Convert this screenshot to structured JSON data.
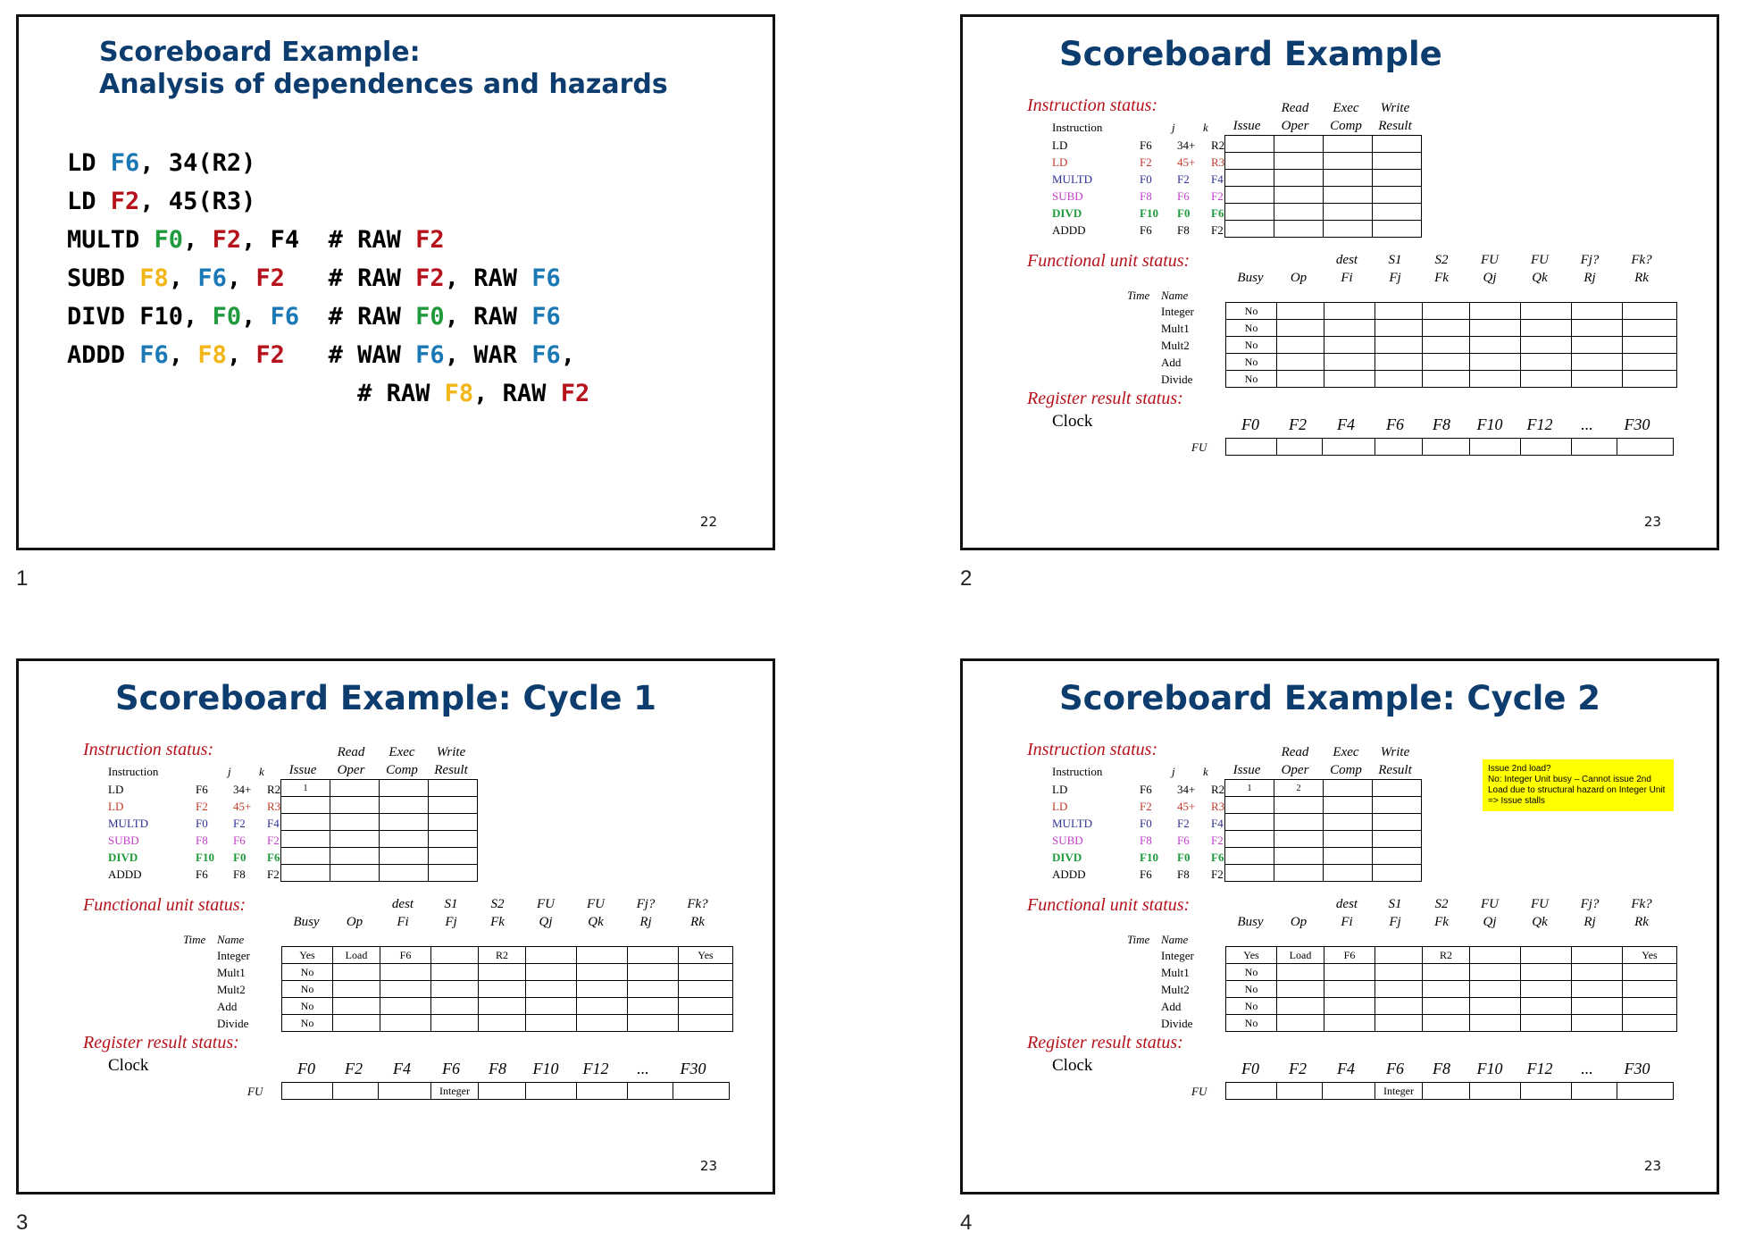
{
  "slides": [
    {
      "label": "1",
      "page_number": "22",
      "title_line1": "Scoreboard Example:",
      "title_line2": "Analysis of  dependences and hazards",
      "code_lines": [
        [
          {
            "t": "LD ",
            "c": "k"
          },
          {
            "t": "F6",
            "c": "blue"
          },
          {
            "t": ", 34(R2)",
            "c": "k"
          }
        ],
        [
          {
            "t": "LD ",
            "c": "k"
          },
          {
            "t": "F2",
            "c": "red"
          },
          {
            "t": ", 45(R3)",
            "c": "k"
          }
        ],
        [
          {
            "t": "MULTD ",
            "c": "k"
          },
          {
            "t": "F0",
            "c": "green"
          },
          {
            "t": ", ",
            "c": "k"
          },
          {
            "t": "F2",
            "c": "red"
          },
          {
            "t": ", F4  # RAW ",
            "c": "k"
          },
          {
            "t": "F2",
            "c": "red"
          }
        ],
        [
          {
            "t": "SUBD ",
            "c": "k"
          },
          {
            "t": "F8",
            "c": "yellow"
          },
          {
            "t": ", ",
            "c": "k"
          },
          {
            "t": "F6",
            "c": "blue"
          },
          {
            "t": ", ",
            "c": "k"
          },
          {
            "t": "F2",
            "c": "red"
          },
          {
            "t": "   # RAW ",
            "c": "k"
          },
          {
            "t": "F2",
            "c": "red"
          },
          {
            "t": ", RAW ",
            "c": "k"
          },
          {
            "t": "F6",
            "c": "blue"
          }
        ],
        [
          {
            "t": "DIVD F10, ",
            "c": "k"
          },
          {
            "t": "F0",
            "c": "green"
          },
          {
            "t": ", ",
            "c": "k"
          },
          {
            "t": "F6",
            "c": "blue"
          },
          {
            "t": "  # RAW ",
            "c": "k"
          },
          {
            "t": "F0",
            "c": "green"
          },
          {
            "t": ", RAW ",
            "c": "k"
          },
          {
            "t": "F6",
            "c": "blue"
          }
        ],
        [
          {
            "t": "ADDD ",
            "c": "k"
          },
          {
            "t": "F6",
            "c": "blue"
          },
          {
            "t": ", ",
            "c": "k"
          },
          {
            "t": "F8",
            "c": "yellow"
          },
          {
            "t": ", ",
            "c": "k"
          },
          {
            "t": "F2",
            "c": "red"
          },
          {
            "t": "   # WAW ",
            "c": "k"
          },
          {
            "t": "F6",
            "c": "blue"
          },
          {
            "t": ", WAR ",
            "c": "k"
          },
          {
            "t": "F6",
            "c": "blue"
          },
          {
            "t": ",",
            "c": "k"
          }
        ],
        [
          {
            "t": "                    # RAW ",
            "c": "k"
          },
          {
            "t": "F8",
            "c": "yellow"
          },
          {
            "t": ", RAW ",
            "c": "k"
          },
          {
            "t": "F2",
            "c": "red"
          }
        ]
      ]
    },
    {
      "label": "2",
      "page_number": "23",
      "title": "Scoreboard Example"
    },
    {
      "label": "3",
      "page_number": "23",
      "title": "Scoreboard Example: Cycle 1"
    },
    {
      "label": "4",
      "page_number": "23",
      "title": "Scoreboard Example: Cycle 2",
      "note": "Issue 2nd load?\nNo: Integer Unit busy – Cannot issue 2nd Load due to structural hazard on Integer Unit => Issue stalls"
    }
  ],
  "common": {
    "instruction_status": "Instruction status:",
    "functional_unit_status": "Functional unit status:",
    "register_result_status": "Register result status:",
    "clock": "Clock",
    "instr_header": {
      "instruction": "Instruction",
      "j": "j",
      "k": "k",
      "issue": "Issue",
      "read1": "Read",
      "read2": "Oper",
      "exec1": "Exec",
      "exec2": "Comp",
      "write1": "Write",
      "write2": "Result"
    },
    "instructions": [
      {
        "op": "LD",
        "d": "F6",
        "j": "34+",
        "k": "R2",
        "color": "#000000"
      },
      {
        "op": "LD",
        "d": "F2",
        "j": "45+",
        "k": "R3",
        "color": "#c0392b"
      },
      {
        "op": "MULTD",
        "d": "F0",
        "j": "F2",
        "k": "F4",
        "color": "#2e3192"
      },
      {
        "op": "SUBD",
        "d": "F8",
        "j": "F6",
        "k": "F2",
        "color": "#c040c8"
      },
      {
        "op": "DIVD",
        "d": "F10",
        "j": "F0",
        "k": "F6",
        "color": "#1f9a3c"
      },
      {
        "op": "ADDD",
        "d": "F6",
        "j": "F8",
        "k": "F2",
        "color": "#000000"
      }
    ],
    "fu_header": {
      "time": "Time",
      "name": "Name",
      "busy": "Busy",
      "op": "Op",
      "dest1": "dest",
      "dest2": "Fi",
      "s1a": "S1",
      "s1b": "Fj",
      "s2a": "S2",
      "s2b": "Fk",
      "fuj1": "FU",
      "fuj2": "Qj",
      "fuk1": "FU",
      "fuk2": "Qk",
      "rj1": "Fj?",
      "rj2": "Rj",
      "rk1": "Fk?",
      "rk2": "Rk"
    },
    "fu_names": [
      "Integer",
      "Mult1",
      "Mult2",
      "Add",
      "Divide"
    ],
    "reg_names": [
      "F0",
      "F2",
      "F4",
      "F6",
      "F8",
      "F10",
      "F12",
      "...",
      "F30"
    ],
    "fu_label": "FU"
  },
  "states": [
    {
      "instr_status": [
        [
          "",
          "",
          "",
          ""
        ],
        [
          "",
          "",
          "",
          ""
        ],
        [
          "",
          "",
          "",
          ""
        ],
        [
          "",
          "",
          "",
          ""
        ],
        [
          "",
          "",
          "",
          ""
        ],
        [
          "",
          "",
          "",
          ""
        ]
      ],
      "fu": [
        [
          "No",
          "",
          "",
          "",
          "",
          "",
          "",
          "",
          ""
        ],
        [
          "No",
          "",
          "",
          "",
          "",
          "",
          "",
          "",
          ""
        ],
        [
          "No",
          "",
          "",
          "",
          "",
          "",
          "",
          "",
          ""
        ],
        [
          "No",
          "",
          "",
          "",
          "",
          "",
          "",
          "",
          ""
        ],
        [
          "No",
          "",
          "",
          "",
          "",
          "",
          "",
          "",
          ""
        ]
      ],
      "reg": [
        "",
        "",
        "",
        "",
        "",
        "",
        "",
        "",
        ""
      ]
    },
    {
      "instr_status": [
        [
          "1",
          "",
          "",
          ""
        ],
        [
          "",
          "",
          "",
          ""
        ],
        [
          "",
          "",
          "",
          ""
        ],
        [
          "",
          "",
          "",
          ""
        ],
        [
          "",
          "",
          "",
          ""
        ],
        [
          "",
          "",
          "",
          ""
        ]
      ],
      "fu": [
        [
          "Yes",
          "Load",
          "F6",
          "",
          "R2",
          "",
          "",
          "",
          "Yes"
        ],
        [
          "No",
          "",
          "",
          "",
          "",
          "",
          "",
          "",
          ""
        ],
        [
          "No",
          "",
          "",
          "",
          "",
          "",
          "",
          "",
          ""
        ],
        [
          "No",
          "",
          "",
          "",
          "",
          "",
          "",
          "",
          ""
        ],
        [
          "No",
          "",
          "",
          "",
          "",
          "",
          "",
          "",
          ""
        ]
      ],
      "reg": [
        "",
        "",
        "",
        "Integer",
        "",
        "",
        "",
        "",
        ""
      ]
    },
    {
      "instr_status": [
        [
          "1",
          "2",
          "",
          ""
        ],
        [
          "",
          "",
          "",
          ""
        ],
        [
          "",
          "",
          "",
          ""
        ],
        [
          "",
          "",
          "",
          ""
        ],
        [
          "",
          "",
          "",
          ""
        ],
        [
          "",
          "",
          "",
          ""
        ]
      ],
      "fu": [
        [
          "Yes",
          "Load",
          "F6",
          "",
          "R2",
          "",
          "",
          "",
          "Yes"
        ],
        [
          "No",
          "",
          "",
          "",
          "",
          "",
          "",
          "",
          ""
        ],
        [
          "No",
          "",
          "",
          "",
          "",
          "",
          "",
          "",
          ""
        ],
        [
          "No",
          "",
          "",
          "",
          "",
          "",
          "",
          "",
          ""
        ],
        [
          "No",
          "",
          "",
          "",
          "",
          "",
          "",
          "",
          ""
        ]
      ],
      "reg": [
        "",
        "",
        "",
        "Integer",
        "",
        "",
        "",
        "",
        ""
      ]
    }
  ]
}
